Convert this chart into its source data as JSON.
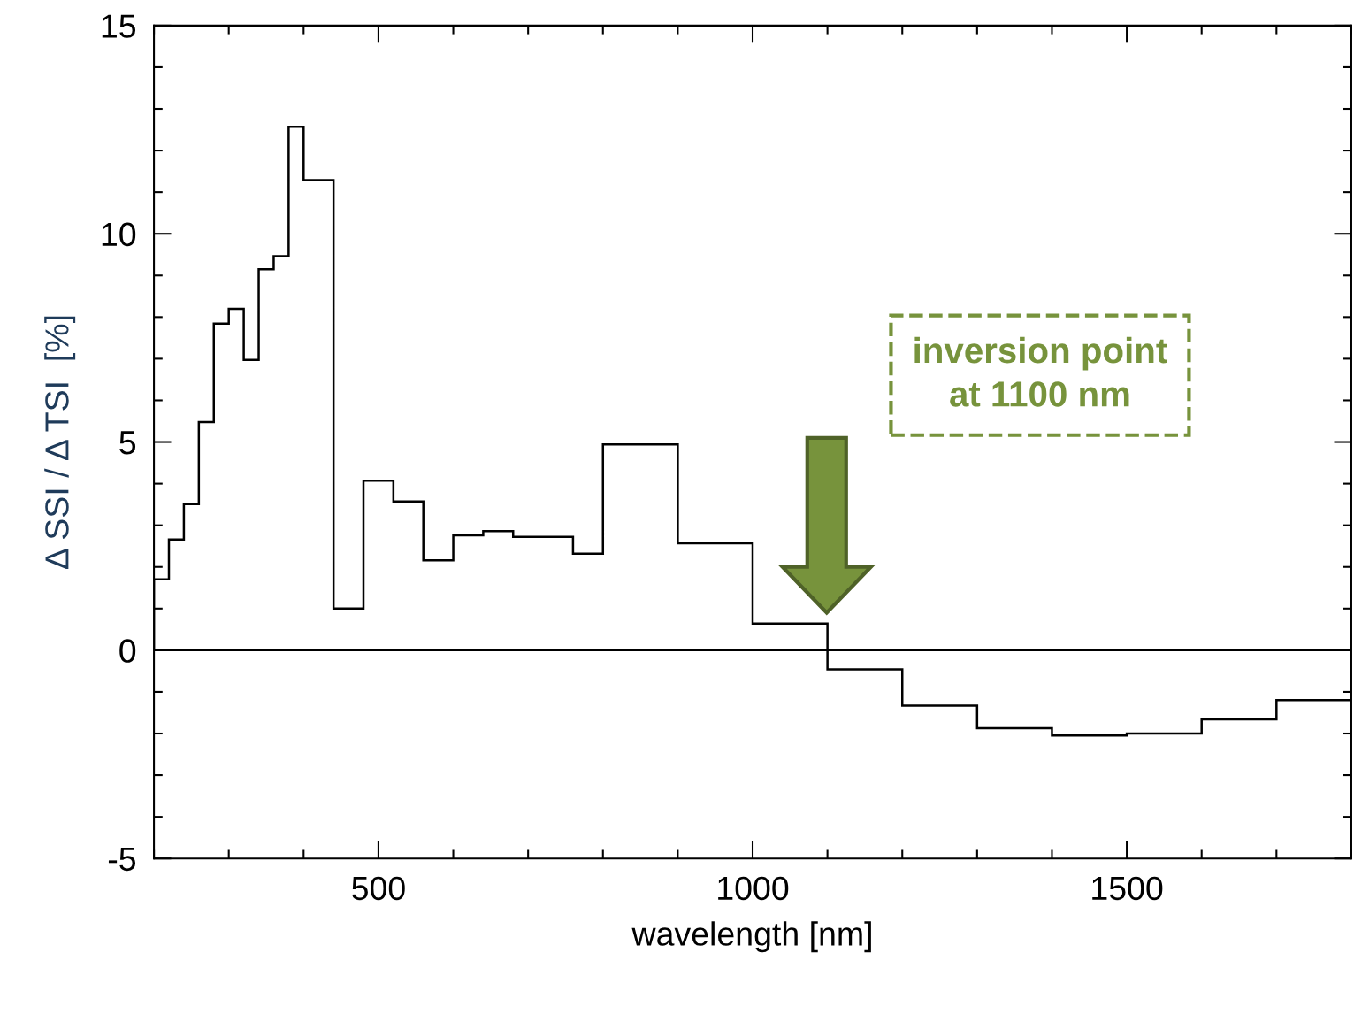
{
  "chart_data": {
    "type": "histogram",
    "xlabel": "wavelength [nm]",
    "ylabel": "Δ SSI / Δ TSI  [%]",
    "bins": [
      200,
      220,
      240,
      260,
      280,
      300,
      320,
      340,
      360,
      380,
      400,
      440,
      480,
      520,
      560,
      600,
      640,
      680,
      760,
      800,
      900,
      1000,
      1100,
      1200,
      1300,
      1400,
      1500,
      1600,
      1700,
      1800
    ],
    "values": [
      1.7,
      2.66,
      3.51,
      5.48,
      7.84,
      8.2,
      6.97,
      9.15,
      9.46,
      12.57,
      11.29,
      1.0,
      4.07,
      3.57,
      2.16,
      2.76,
      2.86,
      2.72,
      2.32,
      4.94,
      2.57,
      0.64,
      -0.46,
      -1.33,
      -1.87,
      -2.05,
      -2.0,
      -1.66,
      -1.2
    ],
    "color": "#000000",
    "xlim": [
      200,
      1800
    ],
    "xticks": [
      500,
      1000,
      1500
    ],
    "ylim": [
      -5,
      15
    ],
    "yticks": [
      -5,
      0,
      5,
      10,
      15
    ],
    "ref_lines": [
      {
        "axis": "y",
        "value": 0,
        "color": "#000000"
      }
    ],
    "annotations": [
      "inversion point\nat 1100 nm"
    ],
    "grid": false,
    "legend": false
  }
}
